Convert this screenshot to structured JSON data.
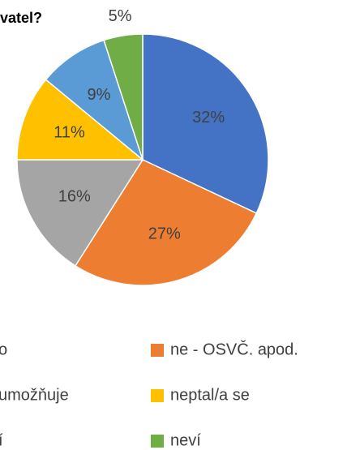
{
  "chart_data": {
    "type": "pie",
    "title": "vatel?",
    "categories": [
      "o",
      "ne - OSVČ. apod.",
      "umožňuje",
      "neptal/a se",
      "í",
      "neví"
    ],
    "values": [
      32,
      27,
      16,
      11,
      9,
      5
    ],
    "value_labels": [
      "32%",
      "27%",
      "16%",
      "11%",
      "9%",
      "5%"
    ],
    "colors": [
      "#4472c4",
      "#ed7d31",
      "#a5a5a5",
      "#ffc000",
      "#5b9bd5",
      "#70ad47"
    ]
  }
}
